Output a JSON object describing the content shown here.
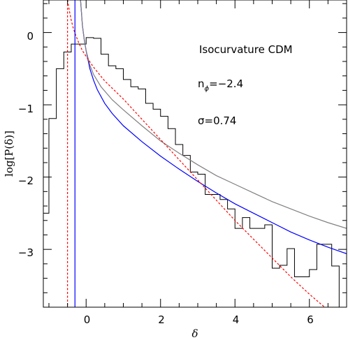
{
  "chart_data": {
    "type": "line",
    "title": "",
    "xlabel": "δ",
    "ylabel": "log[P(δ)]",
    "xlim": [
      -1.15,
      7.0
    ],
    "ylim": [
      -3.8,
      0.45
    ],
    "x_ticks": [
      "0",
      "2",
      "4",
      "6"
    ],
    "y_ticks": [
      "0",
      "−1",
      "−2",
      "−3"
    ],
    "grid": false,
    "annotations": {
      "model": "Isocurvature CDM",
      "n_label": "n",
      "n_sub": "ϕ",
      "n_value": "=−2.4",
      "sigma": "σ=0.74"
    },
    "series": [
      {
        "kind": "histogram",
        "color": "#000000",
        "edges": [
          -1.15,
          -1.0,
          -0.8,
          -0.6,
          -0.4,
          -0.2,
          0.0,
          0.2,
          0.4,
          0.6,
          0.8,
          1.0,
          1.2,
          1.4,
          1.6,
          1.8,
          2.0,
          2.2,
          2.4,
          2.6,
          2.8,
          3.0,
          3.2,
          3.4,
          3.6,
          3.8,
          4.0,
          4.2,
          4.4,
          4.6,
          4.8,
          5.0,
          5.2,
          5.4,
          5.6,
          5.8,
          6.0,
          6.2,
          6.4,
          6.6,
          6.8
        ],
        "values": [
          -2.5,
          -1.19,
          -0.5,
          -0.27,
          -0.16,
          -0.16,
          -0.07,
          -0.08,
          -0.3,
          -0.46,
          -0.5,
          -0.65,
          -0.75,
          -0.78,
          -0.98,
          -1.06,
          -1.16,
          -1.33,
          -1.55,
          -1.7,
          -1.93,
          -1.96,
          -2.24,
          -2.24,
          -2.31,
          -2.44,
          -2.71,
          -2.56,
          -2.71,
          -2.71,
          -2.66,
          -3.26,
          -3.22,
          -2.99,
          -3.38,
          -3.38,
          -3.28,
          -2.93,
          -2.93,
          -3.23,
          -3.8
        ]
      },
      {
        "kind": "curve",
        "color": "#0000ff",
        "x": [
          -0.15,
          -0.1,
          -0.05,
          0.0,
          0.1,
          0.2,
          0.3,
          0.5,
          0.7,
          1.0,
          1.5,
          2.0,
          2.5,
          3.0,
          3.5,
          4.0,
          4.5,
          5.0,
          5.5,
          6.0,
          6.5,
          7.0
        ],
        "y": [
          0.45,
          0.1,
          -0.1,
          -0.25,
          -0.5,
          -0.66,
          -0.79,
          -0.98,
          -1.12,
          -1.29,
          -1.51,
          -1.71,
          -1.89,
          -2.06,
          -2.22,
          -2.37,
          -2.5,
          -2.63,
          -2.76,
          -2.87,
          -2.97,
          -3.06
        ]
      },
      {
        "kind": "curve",
        "color": "#808080",
        "x": [
          -0.15,
          -0.1,
          -0.05,
          0.0,
          0.1,
          0.2,
          0.4,
          0.7,
          1.0,
          1.5,
          2.0,
          2.5,
          3.0,
          3.5,
          4.0,
          4.5,
          5.0,
          5.5,
          6.0,
          6.5,
          7.0
        ],
        "y": [
          0.45,
          0.1,
          -0.1,
          -0.25,
          -0.45,
          -0.58,
          -0.75,
          -0.93,
          -1.07,
          -1.29,
          -1.5,
          -1.67,
          -1.83,
          -1.98,
          -2.1,
          -2.22,
          -2.34,
          -2.44,
          -2.54,
          -2.63,
          -2.71
        ]
      },
      {
        "kind": "curve",
        "color": "#ff0000",
        "dashed": true,
        "x": [
          -0.5,
          -0.45,
          -0.4,
          -0.35,
          -0.3,
          -0.2,
          -0.1,
          0.0,
          0.2,
          0.5,
          1.0,
          1.5,
          2.0,
          2.5,
          3.0,
          3.5,
          4.0,
          4.5,
          5.0,
          5.5,
          6.0,
          6.5,
          7.0
        ],
        "y": [
          0.45,
          0.3,
          0.17,
          0.07,
          -0.01,
          -0.14,
          -0.25,
          -0.33,
          -0.48,
          -0.67,
          -0.92,
          -1.2,
          -1.48,
          -1.76,
          -2.04,
          -2.32,
          -2.6,
          -2.86,
          -3.12,
          -3.38,
          -3.62,
          -3.84,
          -4.06
        ]
      },
      {
        "kind": "vline",
        "color": "#ff0000",
        "dashed": true,
        "x": -0.5
      },
      {
        "kind": "vline",
        "color": "#0000ff",
        "dashed": false,
        "x": -0.3
      }
    ]
  }
}
